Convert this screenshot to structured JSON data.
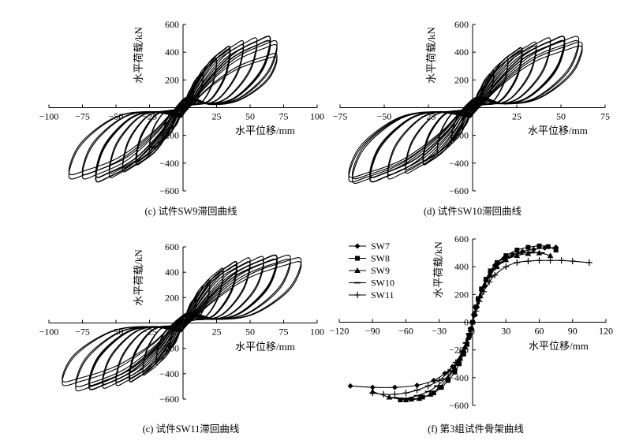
{
  "figure": {
    "panels": [
      {
        "caption": "(c) 试件SW9滞回曲线",
        "chart_data": {
          "type": "line",
          "specimen": "SW9",
          "xlabel": "水平位移/mm",
          "ylabel": "水平荷载/kN",
          "xlim": [
            -100,
            100
          ],
          "ylim": [
            -600,
            600
          ],
          "xticks": [
            -100,
            -75,
            -50,
            -25,
            0,
            25,
            50,
            75,
            100
          ],
          "xtick_labels": [
            "−100",
            "−75",
            "−50",
            "−25",
            "",
            "25",
            "50",
            "75",
            "100"
          ],
          "yticks": [
            -600,
            -400,
            -200,
            0,
            200,
            400,
            600
          ],
          "ytick_labels": [
            "−600",
            "−400",
            "−200",
            "",
            "200",
            "400",
            "600"
          ],
          "cycles": [
            {
              "dpos": 8,
              "ppos": 150,
              "dneg": -8,
              "pneg": -150
            },
            {
              "dpos": 15,
              "ppos": 250,
              "dneg": -15,
              "pneg": -230
            },
            {
              "dpos": 25,
              "ppos": 350,
              "dneg": -25,
              "pneg": -300
            },
            {
              "dpos": 35,
              "ppos": 430,
              "dneg": -35,
              "pneg": -400
            },
            {
              "dpos": 45,
              "ppos": 470,
              "dneg": -45,
              "pneg": -450
            },
            {
              "dpos": 55,
              "ppos": 490,
              "dneg": -55,
              "pneg": -490
            },
            {
              "dpos": 65,
              "ppos": 500,
              "dneg": -65,
              "pneg": -520
            },
            {
              "dpos": 70,
              "ppos": 470,
              "dneg": -75,
              "pneg": -500
            },
            {
              "dpos": 70,
              "ppos": 380,
              "dneg": -85,
              "pneg": -500
            }
          ]
        }
      },
      {
        "caption": "(d) 试件SW10滞回曲线",
        "chart_data": {
          "type": "line",
          "specimen": "SW10",
          "xlabel": "水平位移/mm",
          "ylabel": "水平荷载/kN",
          "xlim": [
            -75,
            75
          ],
          "ylim": [
            -600,
            600
          ],
          "xticks": [
            -75,
            -50,
            -25,
            0,
            25,
            50,
            75
          ],
          "xtick_labels": [
            "−75",
            "−50",
            "−25",
            "",
            "25",
            "50",
            "75"
          ],
          "yticks": [
            -600,
            -400,
            -200,
            0,
            200,
            400,
            600
          ],
          "ytick_labels": [
            "−600",
            "−400",
            "−200",
            "",
            "200",
            "400",
            "600"
          ],
          "cycles": [
            {
              "dpos": 6,
              "ppos": 150,
              "dneg": -6,
              "pneg": -150
            },
            {
              "dpos": 12,
              "ppos": 260,
              "dneg": -12,
              "pneg": -250
            },
            {
              "dpos": 20,
              "ppos": 350,
              "dneg": -20,
              "pneg": -330
            },
            {
              "dpos": 28,
              "ppos": 420,
              "dneg": -28,
              "pneg": -400
            },
            {
              "dpos": 36,
              "ppos": 460,
              "dneg": -38,
              "pneg": -460
            },
            {
              "dpos": 44,
              "ppos": 490,
              "dneg": -48,
              "pneg": -500
            },
            {
              "dpos": 52,
              "ppos": 500,
              "dneg": -58,
              "pneg": -520
            },
            {
              "dpos": 60,
              "ppos": 500,
              "dneg": -68,
              "pneg": -530
            },
            {
              "dpos": 62,
              "ppos": 460,
              "dneg": -70,
              "pneg": -520
            }
          ]
        }
      },
      {
        "caption": "(c) 试件SW11滞回曲线",
        "chart_data": {
          "type": "line",
          "specimen": "SW11",
          "xlabel": "水平位移/mm",
          "ylabel": "水平荷载/kN",
          "xlim": [
            -100,
            100
          ],
          "ylim": [
            -600,
            600
          ],
          "xticks": [
            -100,
            -75,
            -50,
            -25,
            0,
            25,
            50,
            75,
            100
          ],
          "xtick_labels": [
            "−100",
            "−75",
            "−50",
            "−25",
            "",
            "25",
            "50",
            "75",
            "100"
          ],
          "yticks": [
            -600,
            -400,
            -200,
            0,
            200,
            400,
            600
          ],
          "ytick_labels": [
            "−600",
            "−400",
            "−200",
            "",
            "200",
            "400",
            "600"
          ],
          "cycles": [
            {
              "dpos": 10,
              "ppos": 200,
              "dneg": -10,
              "pneg": -200
            },
            {
              "dpos": 20,
              "ppos": 330,
              "dneg": -20,
              "pneg": -320
            },
            {
              "dpos": 30,
              "ppos": 420,
              "dneg": -30,
              "pneg": -400
            },
            {
              "dpos": 40,
              "ppos": 470,
              "dneg": -40,
              "pneg": -450
            },
            {
              "dpos": 50,
              "ppos": 500,
              "dneg": -50,
              "pneg": -480
            },
            {
              "dpos": 60,
              "ppos": 510,
              "dneg": -60,
              "pneg": -500
            },
            {
              "dpos": 70,
              "ppos": 520,
              "dneg": -70,
              "pneg": -510
            },
            {
              "dpos": 80,
              "ppos": 520,
              "dneg": -80,
              "pneg": -520
            },
            {
              "dpos": 88,
              "ppos": 500,
              "dneg": -90,
              "pneg": -480
            }
          ]
        }
      },
      {
        "caption": "(f) 第3组试件骨架曲线",
        "chart_data": {
          "type": "line",
          "xlabel": "水平位移/mm",
          "ylabel": "水平荷载/kN",
          "xlim": [
            -120,
            120
          ],
          "ylim": [
            -600,
            600
          ],
          "xticks": [
            -120,
            -90,
            -60,
            -30,
            0,
            30,
            60,
            90,
            120
          ],
          "xtick_labels": [
            "−120",
            "−90",
            "−60",
            "−30",
            "0",
            "30",
            "60",
            "90",
            "120"
          ],
          "yticks": [
            -600,
            -400,
            -200,
            0,
            200,
            400,
            600
          ],
          "ytick_labels": [
            "−600",
            "−400",
            "−200",
            "0",
            "200",
            "400",
            "600"
          ],
          "legend": {
            "position": "top-left",
            "entries": [
              "SW7",
              "SW8",
              "SW9",
              "SW10",
              "SW11"
            ]
          },
          "series": [
            {
              "name": "SW7",
              "marker": "diamond",
              "x": [
                -110,
                -90,
                -70,
                -50,
                -35,
                -25,
                -18,
                -12,
                -8,
                -5,
                -3,
                -1.5,
                0,
                1.5,
                3,
                5,
                8,
                12,
                16,
                20,
                28,
                36,
                45,
                55,
                65,
                75
              ],
              "y": [
                -460,
                -470,
                -470,
                -455,
                -420,
                -370,
                -320,
                -270,
                -210,
                -150,
                -100,
                -50,
                0,
                50,
                100,
                160,
                230,
                300,
                360,
                410,
                460,
                490,
                510,
                525,
                535,
                540
              ]
            },
            {
              "name": "SW8",
              "marker": "square",
              "x": [
                -65,
                -55,
                -45,
                -35,
                -28,
                -22,
                -16,
                -12,
                -8,
                -5,
                -3,
                -1.5,
                0,
                1.5,
                3,
                5,
                8,
                12,
                16,
                22,
                30,
                40,
                50,
                60,
                68,
                75
              ],
              "y": [
                -560,
                -555,
                -540,
                -510,
                -470,
                -420,
                -360,
                -300,
                -230,
                -160,
                -100,
                -50,
                0,
                55,
                110,
                170,
                240,
                310,
                370,
                430,
                480,
                520,
                540,
                550,
                545,
                520
              ]
            },
            {
              "name": "SW9",
              "marker": "triangle",
              "x": [
                -90,
                -75,
                -60,
                -48,
                -38,
                -30,
                -22,
                -16,
                -11,
                -7,
                -4,
                -2,
                0,
                2,
                4,
                7,
                11,
                16,
                22,
                30,
                40,
                50,
                60,
                70
              ],
              "y": [
                -500,
                -540,
                -560,
                -550,
                -520,
                -470,
                -400,
                -330,
                -260,
                -180,
                -110,
                -50,
                0,
                60,
                120,
                190,
                270,
                340,
                400,
                450,
                480,
                495,
                500,
                480
              ]
            },
            {
              "name": "SW10",
              "marker": "dash",
              "x": [
                -70,
                -60,
                -50,
                -40,
                -32,
                -25,
                -18,
                -13,
                -9,
                -6,
                -3,
                -1.5,
                0,
                1.5,
                3,
                6,
                9,
                13,
                18,
                25,
                33,
                42,
                52,
                62
              ],
              "y": [
                -545,
                -550,
                -530,
                -500,
                -460,
                -410,
                -350,
                -280,
                -210,
                -150,
                -90,
                -45,
                0,
                55,
                110,
                180,
                250,
                320,
                380,
                430,
                470,
                495,
                505,
                500
              ]
            },
            {
              "name": "SW11",
              "marker": "plus",
              "x": [
                -90,
                -80,
                -70,
                -60,
                -50,
                -40,
                -30,
                -22,
                -15,
                -10,
                -6,
                -3,
                0,
                3,
                6,
                10,
                15,
                20,
                30,
                40,
                50,
                60,
                70,
                80,
                90,
                105
              ],
              "y": [
                -510,
                -520,
                -520,
                -510,
                -490,
                -460,
                -420,
                -360,
                -290,
                -220,
                -150,
                -80,
                0,
                80,
                150,
                220,
                290,
                340,
                400,
                430,
                440,
                445,
                445,
                445,
                440,
                430
              ]
            }
          ]
        }
      }
    ]
  }
}
